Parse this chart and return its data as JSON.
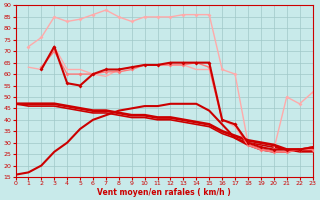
{
  "xlabel": "Vent moyen/en rafales ( km/h )",
  "xlim": [
    0,
    23
  ],
  "ylim": [
    15,
    90
  ],
  "yticks": [
    15,
    20,
    25,
    30,
    35,
    40,
    45,
    50,
    55,
    60,
    65,
    70,
    75,
    80,
    85,
    90
  ],
  "xticks": [
    0,
    1,
    2,
    3,
    4,
    5,
    6,
    7,
    8,
    9,
    10,
    11,
    12,
    13,
    14,
    15,
    16,
    17,
    18,
    19,
    20,
    21,
    22,
    23
  ],
  "bg_color": "#c8eaea",
  "grid_color": "#a0c8c8",
  "lines": [
    {
      "x": [
        0,
        1,
        2,
        3,
        4,
        5,
        6,
        7,
        8,
        9,
        10,
        11,
        12,
        13,
        14,
        15,
        16,
        17,
        18,
        19,
        20,
        21,
        22,
        23
      ],
      "y": [
        47,
        46,
        46,
        46,
        45,
        44,
        43,
        43,
        42,
        41,
        41,
        40,
        40,
        39,
        38,
        37,
        34,
        32,
        30,
        29,
        28,
        27,
        26,
        26
      ],
      "color": "#cc0000",
      "lw": 1.2,
      "marker": null,
      "ms": 0,
      "zorder": 2
    },
    {
      "x": [
        0,
        1,
        2,
        3,
        4,
        5,
        6,
        7,
        8,
        9,
        10,
        11,
        12,
        13,
        14,
        15,
        16,
        17,
        18,
        19,
        20,
        21,
        22,
        23
      ],
      "y": [
        47,
        47,
        47,
        47,
        46,
        45,
        44,
        44,
        43,
        42,
        42,
        41,
        41,
        40,
        39,
        38,
        35,
        33,
        31,
        30,
        29,
        27,
        27,
        27
      ],
      "color": "#cc0000",
      "lw": 2.0,
      "marker": null,
      "ms": 0,
      "zorder": 3
    },
    {
      "x": [
        0,
        1,
        2,
        3,
        4,
        5,
        6,
        7,
        8,
        9,
        10,
        11,
        12,
        13,
        14,
        15,
        16,
        17,
        18,
        19,
        20,
        21,
        22,
        23
      ],
      "y": [
        16,
        17,
        20,
        26,
        30,
        36,
        40,
        42,
        44,
        45,
        46,
        46,
        47,
        47,
        47,
        44,
        38,
        32,
        29,
        27,
        26,
        26,
        27,
        28
      ],
      "color": "#cc0000",
      "lw": 1.5,
      "marker": null,
      "ms": 0,
      "zorder": 2
    },
    {
      "x": [
        2,
        3,
        4,
        5,
        6,
        7,
        8,
        9,
        10,
        11,
        12,
        13,
        14,
        15,
        16,
        17,
        18,
        19,
        20,
        21,
        22,
        23
      ],
      "y": [
        62,
        72,
        56,
        55,
        60,
        62,
        62,
        63,
        64,
        64,
        65,
        65,
        65,
        65,
        40,
        38,
        30,
        28,
        27,
        27,
        27,
        28
      ],
      "color": "#cc0000",
      "lw": 1.5,
      "marker": "D",
      "ms": 2,
      "zorder": 4
    },
    {
      "x": [
        2,
        3,
        4,
        5,
        6,
        7,
        8,
        9,
        10,
        11,
        12,
        13,
        14,
        15,
        16,
        17,
        18,
        19,
        20,
        21,
        22,
        23
      ],
      "y": [
        63,
        70,
        60,
        60,
        60,
        61,
        61,
        62,
        64,
        64,
        64,
        64,
        65,
        63,
        40,
        38,
        29,
        27,
        26,
        26,
        27,
        27
      ],
      "color": "#ff7777",
      "lw": 1.0,
      "marker": "D",
      "ms": 2,
      "zorder": 3
    },
    {
      "x": [
        1,
        2,
        3,
        4,
        5,
        6,
        7,
        8,
        9,
        10,
        11,
        12,
        13,
        14,
        15,
        16,
        17,
        18,
        19,
        20,
        21,
        22,
        23
      ],
      "y": [
        63,
        62,
        72,
        62,
        62,
        60,
        59,
        62,
        63,
        64,
        64,
        64,
        64,
        62,
        62,
        40,
        37,
        29,
        27,
        26,
        26,
        27,
        28
      ],
      "color": "#ffaaaa",
      "lw": 1.0,
      "marker": null,
      "ms": 0,
      "zorder": 2
    },
    {
      "x": [
        1,
        2,
        3,
        4,
        5,
        6,
        7,
        8,
        9,
        10,
        11,
        12,
        13,
        14,
        15,
        16,
        17,
        18,
        19,
        20,
        21,
        22,
        23
      ],
      "y": [
        72,
        76,
        85,
        83,
        84,
        86,
        88,
        85,
        83,
        85,
        85,
        85,
        86,
        86,
        86,
        62,
        60,
        30,
        28,
        27,
        50,
        47,
        52
      ],
      "color": "#ffaaaa",
      "lw": 1.0,
      "marker": "D",
      "ms": 2,
      "zorder": 2
    }
  ]
}
